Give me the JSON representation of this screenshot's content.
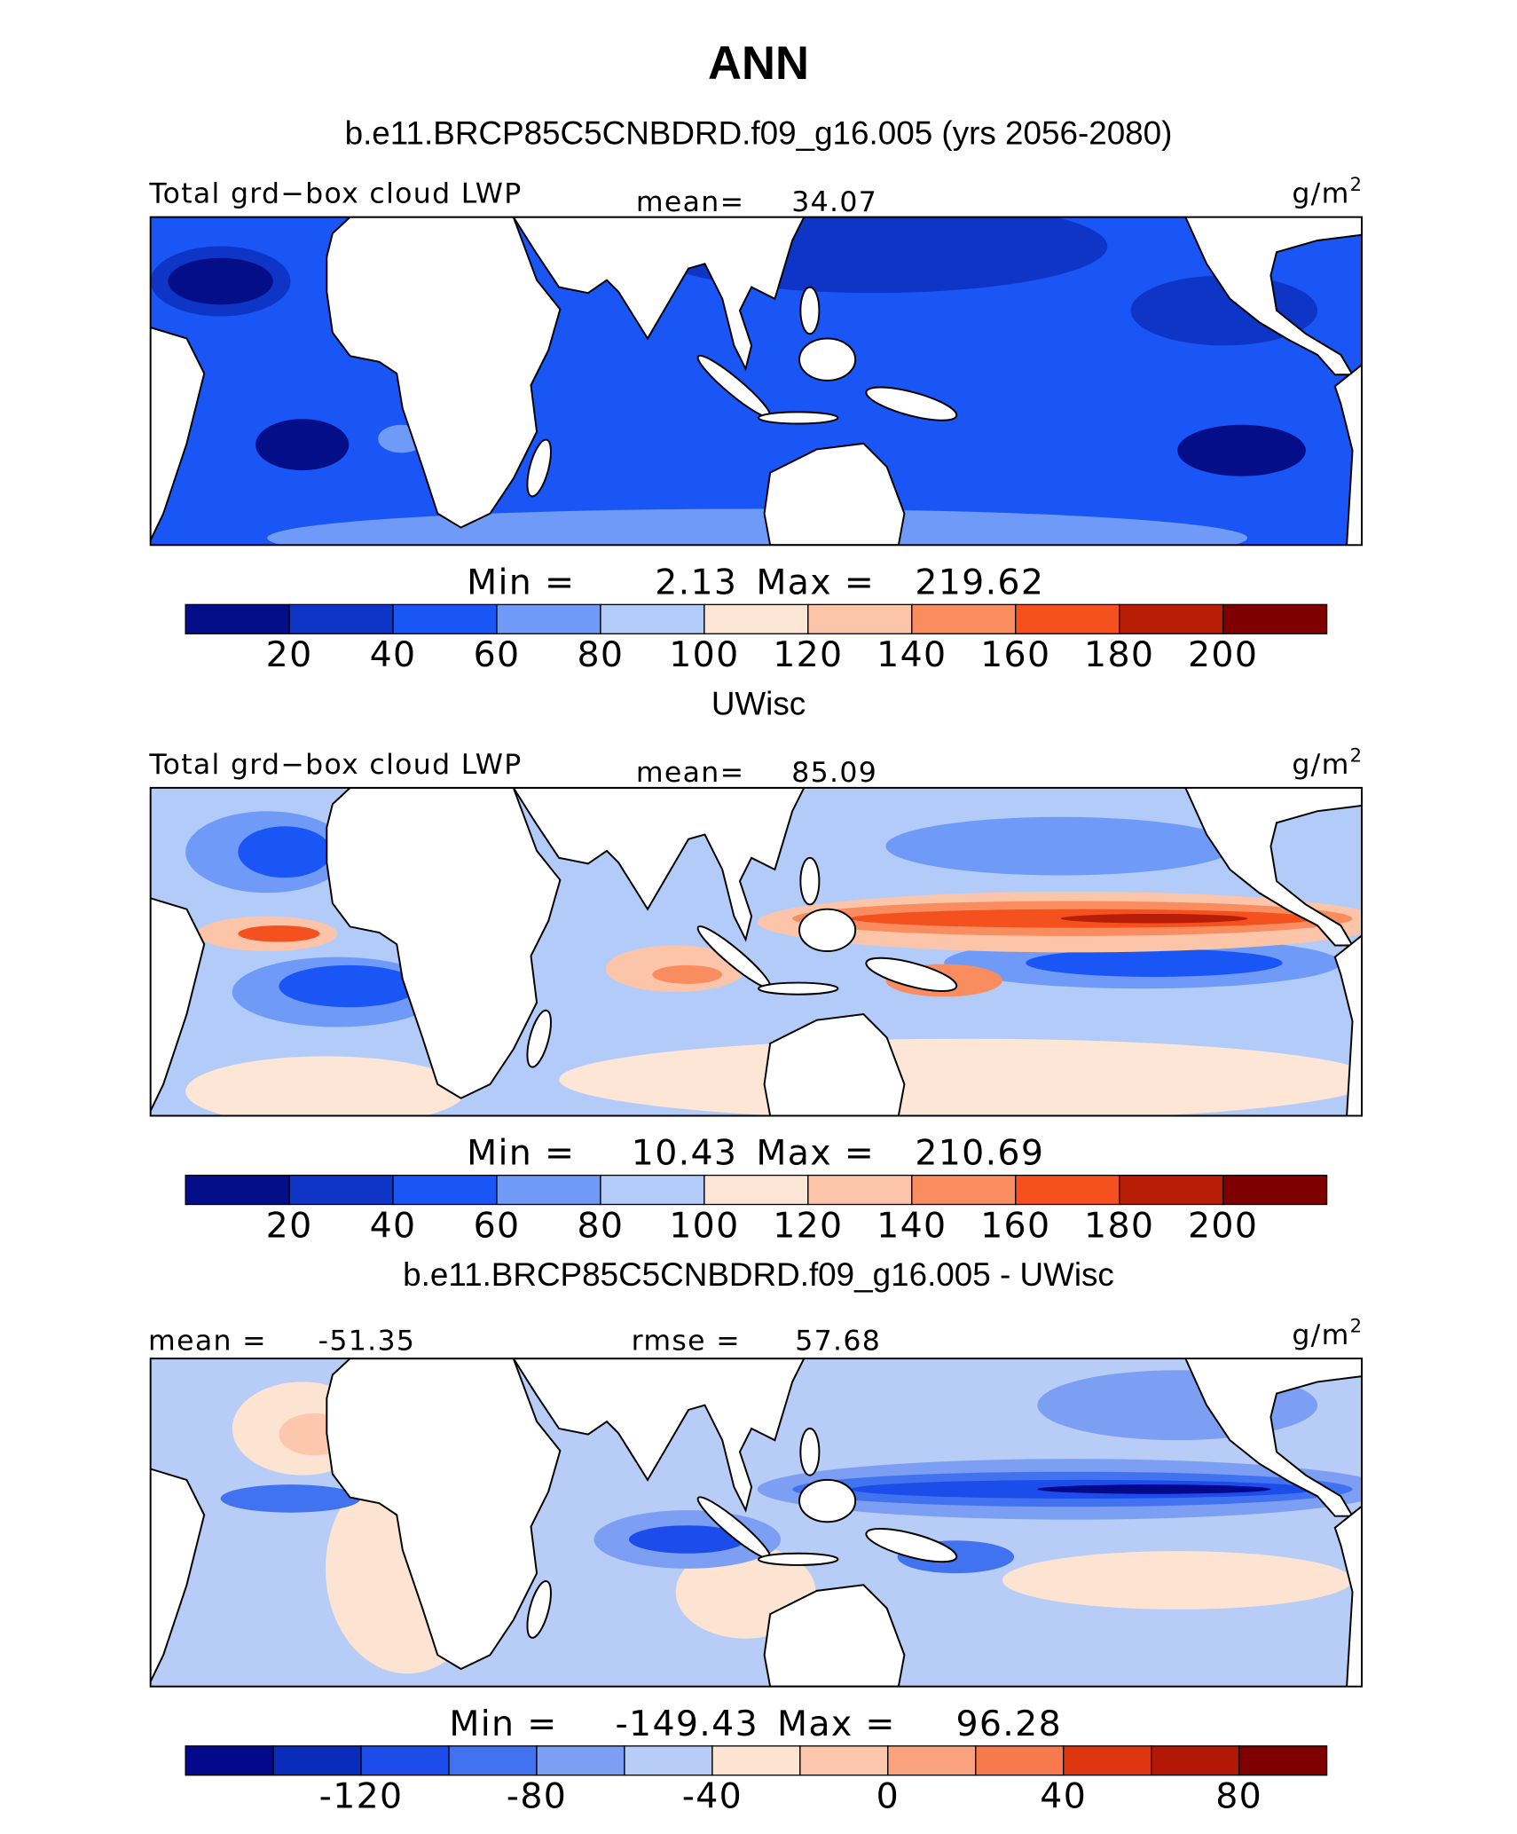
{
  "title": "ANN",
  "panels": [
    {
      "title": "b.e11.BRCP85C5CNBDRD.f09_g16.005 (yrs 2056-2080)",
      "left_label": "Total grd−box cloud LWP",
      "stat1_label": "mean=",
      "stat1": 34.07,
      "units": "g/m",
      "units_sup": "2",
      "min_label": "Min =",
      "min": 2.13,
      "max_label": "Max =",
      "max": 219.62,
      "colorbar": {
        "levels": [
          20,
          40,
          60,
          80,
          100,
          120,
          140,
          160,
          180,
          200
        ],
        "colors": [
          "#030e88",
          "#0f35c7",
          "#1a55f5",
          "#6f9af7",
          "#b2cbf9",
          "#fde6d6",
          "#fcc5aa",
          "#f98d60",
          "#f4511f",
          "#b81d07",
          "#7e0000"
        ]
      }
    },
    {
      "title": "UWisc",
      "left_label": "Total grd−box cloud LWP",
      "stat1_label": "mean=",
      "stat1": 85.09,
      "units": "g/m",
      "units_sup": "2",
      "min_label": "Min =",
      "min": 10.43,
      "max_label": "Max =",
      "max": 210.69,
      "colorbar": {
        "levels": [
          20,
          40,
          60,
          80,
          100,
          120,
          140,
          160,
          180,
          200
        ],
        "colors": [
          "#030e88",
          "#0f35c7",
          "#1a55f5",
          "#6f9af7",
          "#b2cbf9",
          "#fde6d6",
          "#fcc5aa",
          "#f98d60",
          "#f4511f",
          "#b81d07",
          "#7e0000"
        ]
      }
    },
    {
      "title": "b.e11.BRCP85C5CNBDRD.f09_g16.005 - UWisc",
      "stat1_label": "mean =",
      "stat1": -51.35,
      "stat2_label": "rmse =",
      "stat2": 57.68,
      "units": "g/m",
      "units_sup": "2",
      "min_label": "Min =",
      "min": -149.43,
      "max_label": "Max =",
      "max": 96.28,
      "colorbar": {
        "levels": [
          -140,
          -120,
          -100,
          -80,
          -60,
          -40,
          -20,
          0,
          20,
          40,
          60,
          80
        ],
        "ticks": [
          -120,
          -80,
          -40,
          0,
          40,
          80
        ],
        "colors": [
          "#03098a",
          "#0a2cba",
          "#1c4ce9",
          "#4172f0",
          "#7c9ef3",
          "#b7ccf6",
          "#fde4d2",
          "#fcc7ad",
          "#fba27f",
          "#f77a4e",
          "#de3610",
          "#b31807",
          "#7e0000"
        ]
      }
    }
  ]
}
